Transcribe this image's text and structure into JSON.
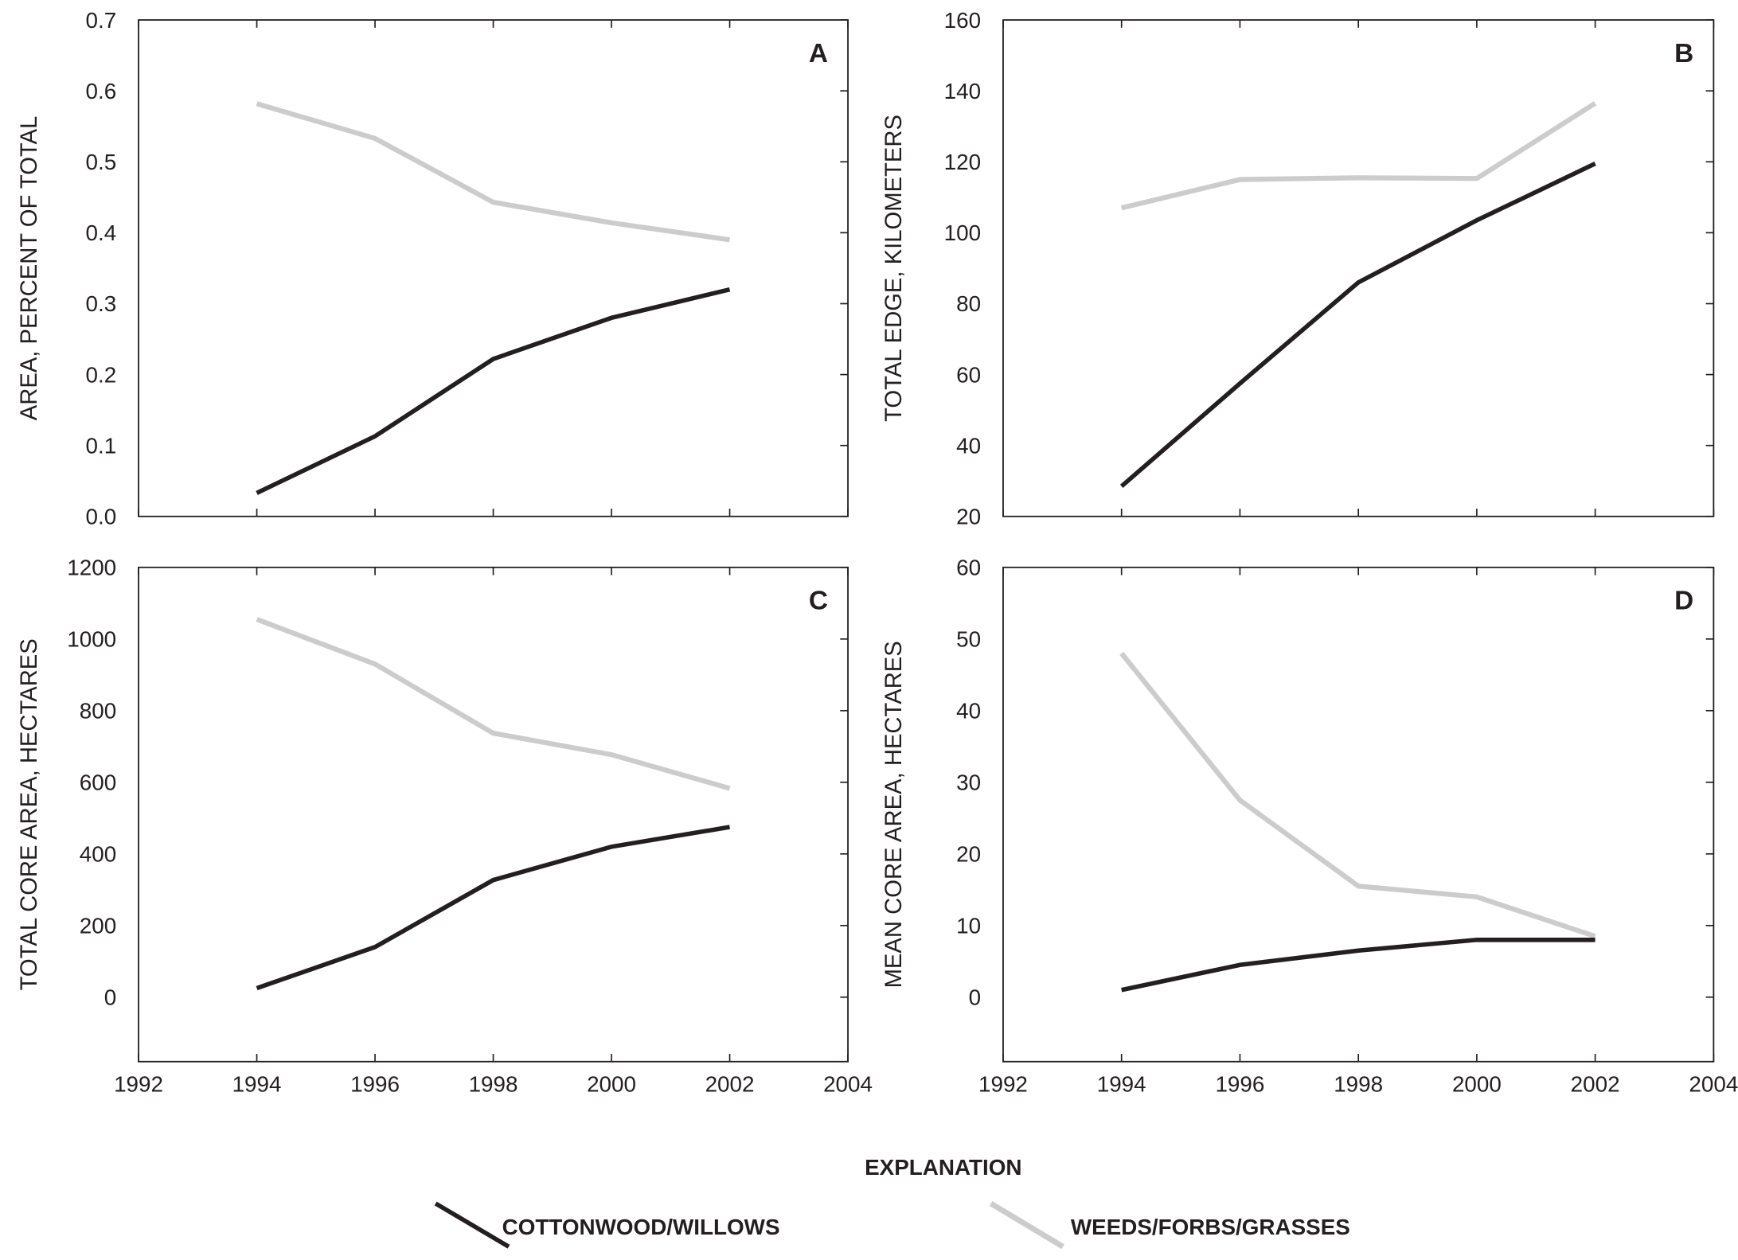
{
  "chart_data": [
    {
      "type": "line",
      "panel": "A",
      "title": "",
      "xlabel": "",
      "ylabel": "AREA, PERCENT OF TOTAL",
      "xlim": [
        1992,
        2004
      ],
      "ylim": [
        0,
        0.7
      ],
      "xticks": [
        "1992",
        "1994",
        "1996",
        "1998",
        "2000",
        "2002",
        "2004"
      ],
      "yticks": [
        "0.0",
        "0.1",
        "0.2",
        "0.3",
        "0.4",
        "0.5",
        "0.6",
        "0.7"
      ],
      "x": [
        1994,
        1996,
        1998,
        2000,
        2002
      ],
      "series": [
        {
          "name": "COTTONWOOD/WILLOWS",
          "values": [
            0.033,
            0.113,
            0.222,
            0.28,
            0.32
          ]
        },
        {
          "name": "WEEDS/FORBS/GRASSES",
          "values": [
            0.582,
            0.533,
            0.443,
            0.414,
            0.39
          ]
        }
      ],
      "show_xtick_labels": false
    },
    {
      "type": "line",
      "panel": "B",
      "title": "",
      "xlabel": "",
      "ylabel": "TOTAL EDGE, KILOMETERS",
      "xlim": [
        1992,
        2004
      ],
      "ylim": [
        20,
        160
      ],
      "xticks": [
        "1992",
        "1994",
        "1996",
        "1998",
        "2000",
        "2002",
        "2004"
      ],
      "yticks": [
        "20",
        "40",
        "60",
        "80",
        "100",
        "120",
        "140",
        "160"
      ],
      "x": [
        1994,
        1996,
        1998,
        2000,
        2002
      ],
      "series": [
        {
          "name": "COTTONWOOD/WILLOWS",
          "values": [
            28.5,
            57.5,
            86,
            103.5,
            119.5
          ]
        },
        {
          "name": "WEEDS/FORBS/GRASSES",
          "values": [
            107,
            115,
            115.5,
            115.3,
            136.5
          ]
        }
      ],
      "show_xtick_labels": false
    },
    {
      "type": "line",
      "panel": "C",
      "title": "",
      "xlabel": "",
      "ylabel": "TOTAL CORE AREA, HECTARES",
      "xlim": [
        1992,
        2004
      ],
      "ylim": [
        -180,
        1200
      ],
      "xticks": [
        "1992",
        "1994",
        "1996",
        "1998",
        "2000",
        "2002",
        "2004"
      ],
      "yticks": [
        "0",
        "200",
        "400",
        "600",
        "800",
        "1000",
        "1200"
      ],
      "x": [
        1994,
        1996,
        1998,
        2000,
        2002
      ],
      "series": [
        {
          "name": "COTTONWOOD/WILLOWS",
          "values": [
            25,
            140,
            327,
            420,
            475
          ]
        },
        {
          "name": "WEEDS/FORBS/GRASSES",
          "values": [
            1055,
            930,
            737,
            677,
            583
          ]
        }
      ],
      "show_xtick_labels": true
    },
    {
      "type": "line",
      "panel": "D",
      "title": "",
      "xlabel": "",
      "ylabel": "MEAN CORE AREA, HECTARES",
      "xlim": [
        1992,
        2004
      ],
      "ylim": [
        -9,
        60
      ],
      "xticks": [
        "1992",
        "1994",
        "1996",
        "1998",
        "2000",
        "2002",
        "2004"
      ],
      "yticks": [
        "0",
        "10",
        "20",
        "30",
        "40",
        "50",
        "60"
      ],
      "x": [
        1994,
        1996,
        1998,
        2000,
        2002
      ],
      "series": [
        {
          "name": "COTTONWOOD/WILLOWS",
          "values": [
            1,
            4.5,
            6.5,
            8,
            8
          ]
        },
        {
          "name": "WEEDS/FORBS/GRASSES",
          "values": [
            48,
            27.5,
            15.5,
            14,
            8.5
          ]
        }
      ],
      "show_xtick_labels": true
    }
  ],
  "legend": {
    "title": "EXPLANATION",
    "placement": "bottom-center",
    "items": [
      {
        "label": "COTTONWOOD/WILLOWS",
        "color": "#231f20"
      },
      {
        "label": "WEEDS/FORBS/GRASSES",
        "color": "#cccccc"
      }
    ]
  }
}
